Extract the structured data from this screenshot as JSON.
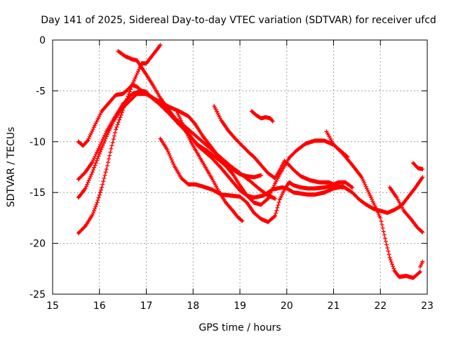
{
  "chart_data": {
    "type": "scatter",
    "title": "Day 141 of 2025, Sidereal Day-to-day VTEC variation (SDTVAR) for receiver ufcd",
    "xlabel": "GPS time / hours",
    "ylabel": "SDTVAR / TECUs",
    "xlim": [
      15,
      23
    ],
    "ylim": [
      -25,
      0
    ],
    "xticks": [
      15,
      16,
      17,
      18,
      19,
      20,
      21,
      22,
      23
    ],
    "yticks": [
      0,
      -5,
      -10,
      -15,
      -20,
      -25
    ],
    "grid": true,
    "marker": "+",
    "series": [
      {
        "name": "track-1",
        "color": "#ff0000",
        "x": [
          15.55,
          15.65,
          15.75,
          15.9,
          16.05,
          16.2,
          16.35,
          16.5,
          16.6,
          16.7,
          16.8,
          16.9,
          17.0,
          17.1,
          17.2,
          17.3,
          17.45,
          17.6,
          17.8,
          18.0,
          18.2,
          18.4,
          18.6,
          18.8,
          19.0,
          19.2,
          19.4,
          19.6,
          19.75
        ],
        "y": [
          -10.0,
          -10.4,
          -9.9,
          -8.4,
          -7.0,
          -6.2,
          -5.4,
          -5.3,
          -4.9,
          -4.4,
          -4.6,
          -5.0,
          -5.3,
          -5.6,
          -6.0,
          -6.3,
          -7.0,
          -7.7,
          -8.4,
          -9.2,
          -10.0,
          -10.8,
          -11.6,
          -12.4,
          -13.1,
          -13.8,
          -14.6,
          -15.3,
          -15.6
        ]
      },
      {
        "name": "track-2",
        "color": "#ff0000",
        "x": [
          15.55,
          15.7,
          15.85,
          16.0,
          16.15,
          16.3,
          16.5,
          16.7,
          16.9,
          17.0,
          17.1,
          17.3,
          17.5,
          17.7,
          17.9,
          18.05,
          18.2,
          18.4,
          18.6,
          18.8,
          19.0,
          19.15,
          19.3,
          19.45
        ],
        "y": [
          -13.7,
          -13.0,
          -12.0,
          -10.5,
          -9.0,
          -7.8,
          -6.3,
          -5.3,
          -5.0,
          -5.1,
          -5.6,
          -6.1,
          -6.6,
          -7.0,
          -7.5,
          -8.3,
          -9.4,
          -10.6,
          -11.8,
          -12.6,
          -13.2,
          -13.4,
          -13.5,
          -13.3
        ]
      },
      {
        "name": "track-3",
        "color": "#ff0000",
        "x": [
          15.55,
          15.7,
          15.85,
          16.0,
          16.15,
          16.3,
          16.45,
          16.6,
          16.8,
          17.0,
          17.15,
          17.3,
          17.5,
          17.7,
          17.9,
          18.1,
          18.25,
          18.4,
          18.6,
          18.8,
          19.0,
          19.15,
          19.3,
          19.5,
          19.7,
          19.9,
          20.0,
          20.15,
          20.3,
          20.45,
          20.6,
          20.8,
          21.0,
          21.2,
          21.4,
          21.55,
          21.7,
          21.85,
          22.0,
          22.15,
          22.3,
          22.45,
          22.6,
          22.75,
          22.9
        ],
        "y": [
          -15.5,
          -14.6,
          -13.0,
          -11.2,
          -9.5,
          -8.0,
          -6.9,
          -6.2,
          -5.3,
          -5.3,
          -5.7,
          -6.4,
          -7.3,
          -8.3,
          -9.2,
          -10.4,
          -11.0,
          -11.6,
          -12.6,
          -13.7,
          -14.8,
          -15.3,
          -15.5,
          -15.3,
          -14.7,
          -14.5,
          -14.6,
          -15.0,
          -15.1,
          -15.2,
          -15.2,
          -15.0,
          -14.6,
          -14.4,
          -15.0,
          -15.7,
          -16.2,
          -16.6,
          -16.8,
          -17.0,
          -16.7,
          -16.3,
          -15.4,
          -14.5,
          -13.5
        ]
      },
      {
        "name": "track-4",
        "color": "#ff0000",
        "x": [
          15.55,
          15.7,
          15.85,
          15.95,
          16.05,
          16.15,
          16.25,
          16.35,
          16.5,
          16.7,
          16.9,
          17.0,
          17.15,
          17.3
        ],
        "y": [
          -19.0,
          -18.3,
          -17.2,
          -16.0,
          -14.5,
          -12.7,
          -10.7,
          -8.8,
          -6.9,
          -4.4,
          -2.3,
          -2.3,
          -1.4,
          -0.5
        ]
      },
      {
        "name": "track-5",
        "color": "#ff0000",
        "x": [
          16.4,
          16.55,
          16.7,
          16.8,
          16.9,
          17.0,
          17.15,
          17.3,
          17.5,
          17.7,
          17.9,
          18.1,
          18.3,
          18.5,
          18.7,
          18.85,
          19.0,
          19.15,
          19.3,
          19.45,
          19.6,
          19.75,
          19.9,
          20.05,
          20.2,
          20.4,
          20.6,
          20.8,
          21.0,
          21.15,
          21.3
        ],
        "y": [
          -1.1,
          -1.6,
          -1.9,
          -2.0,
          -2.7,
          -3.4,
          -4.5,
          -5.7,
          -7.0,
          -8.2,
          -9.3,
          -10.3,
          -10.9,
          -11.6,
          -12.4,
          -13.2,
          -14.3,
          -15.3,
          -16.0,
          -16.2,
          -15.6,
          -14.1,
          -12.8,
          -11.6,
          -10.9,
          -10.2,
          -9.9,
          -9.9,
          -10.3,
          -10.9,
          -11.5
        ]
      },
      {
        "name": "track-6",
        "color": "#ff0000",
        "x": [
          17.3,
          17.45,
          17.6,
          17.75,
          17.9,
          18.05,
          18.2,
          18.4,
          18.6,
          18.8,
          19.0,
          19.15,
          19.3,
          19.45,
          19.6,
          19.75,
          19.85,
          19.95,
          20.05,
          20.15,
          20.3,
          20.45,
          20.6,
          20.8,
          21.0,
          21.2
        ],
        "y": [
          -9.7,
          -10.8,
          -12.4,
          -13.6,
          -14.2,
          -14.2,
          -14.4,
          -14.7,
          -15.2,
          -15.3,
          -15.4,
          -16.0,
          -17.0,
          -17.6,
          -17.9,
          -17.3,
          -15.7,
          -14.7,
          -14.0,
          -14.3,
          -14.5,
          -14.6,
          -14.6,
          -14.5,
          -14.3,
          -14.5
        ]
      },
      {
        "name": "track-7",
        "color": "#ff0000",
        "x": [
          18.45,
          18.6,
          18.75,
          18.9,
          19.05,
          19.2,
          19.3,
          19.45,
          19.6,
          19.75,
          19.85,
          19.95,
          20.05,
          20.15,
          20.3,
          20.5,
          20.7,
          20.9,
          21.0,
          21.1,
          21.25,
          21.4
        ],
        "y": [
          -6.5,
          -7.9,
          -8.9,
          -9.7,
          -10.4,
          -11.1,
          -11.5,
          -12.3,
          -13.1,
          -13.6,
          -12.8,
          -11.9,
          -12.3,
          -12.8,
          -13.4,
          -13.8,
          -14.0,
          -14.0,
          -14.2,
          -14.0,
          -14.0,
          -14.5
        ]
      },
      {
        "name": "track-8",
        "color": "#ff0000",
        "x": [
          17.65,
          17.8,
          17.95,
          18.1,
          18.25,
          18.4,
          18.55,
          18.7,
          18.85,
          18.95,
          19.05
        ],
        "y": [
          -7.0,
          -8.5,
          -10.0,
          -11.2,
          -12.4,
          -13.6,
          -14.9,
          -16.0,
          -16.8,
          -17.4,
          -17.8
        ]
      },
      {
        "name": "track-9",
        "color": "#ff0000",
        "x": [
          19.25,
          19.35,
          19.45,
          19.55,
          19.65,
          19.7
        ],
        "y": [
          -7.0,
          -7.4,
          -7.7,
          -7.6,
          -7.7,
          -8.0
        ]
      },
      {
        "name": "track-10",
        "color": "#ff0000",
        "x": [
          20.85,
          21.0,
          21.2,
          21.4,
          21.6,
          21.8,
          22.0,
          22.1,
          22.2,
          22.3,
          22.4,
          22.55,
          22.7,
          22.85
        ],
        "y": [
          -9.0,
          -10.3,
          -11.2,
          -12.3,
          -13.5,
          -15.5,
          -17.5,
          -19.5,
          -21.4,
          -22.7,
          -23.3,
          -23.2,
          -23.4,
          -22.8
        ]
      },
      {
        "name": "track-11",
        "color": "#ff0000",
        "x": [
          22.2,
          22.35,
          22.5,
          22.65,
          22.8,
          22.9
        ],
        "y": [
          -14.5,
          -15.5,
          -16.8,
          -17.6,
          -18.5,
          -18.9
        ]
      },
      {
        "name": "track-12",
        "color": "#ff0000",
        "x": [
          22.7,
          22.8,
          22.9
        ],
        "y": [
          -12.1,
          -12.6,
          -12.7
        ]
      },
      {
        "name": "track-13",
        "color": "#ff0000",
        "x": [
          22.85,
          22.9
        ],
        "y": [
          -22.3,
          -21.8
        ]
      }
    ]
  }
}
